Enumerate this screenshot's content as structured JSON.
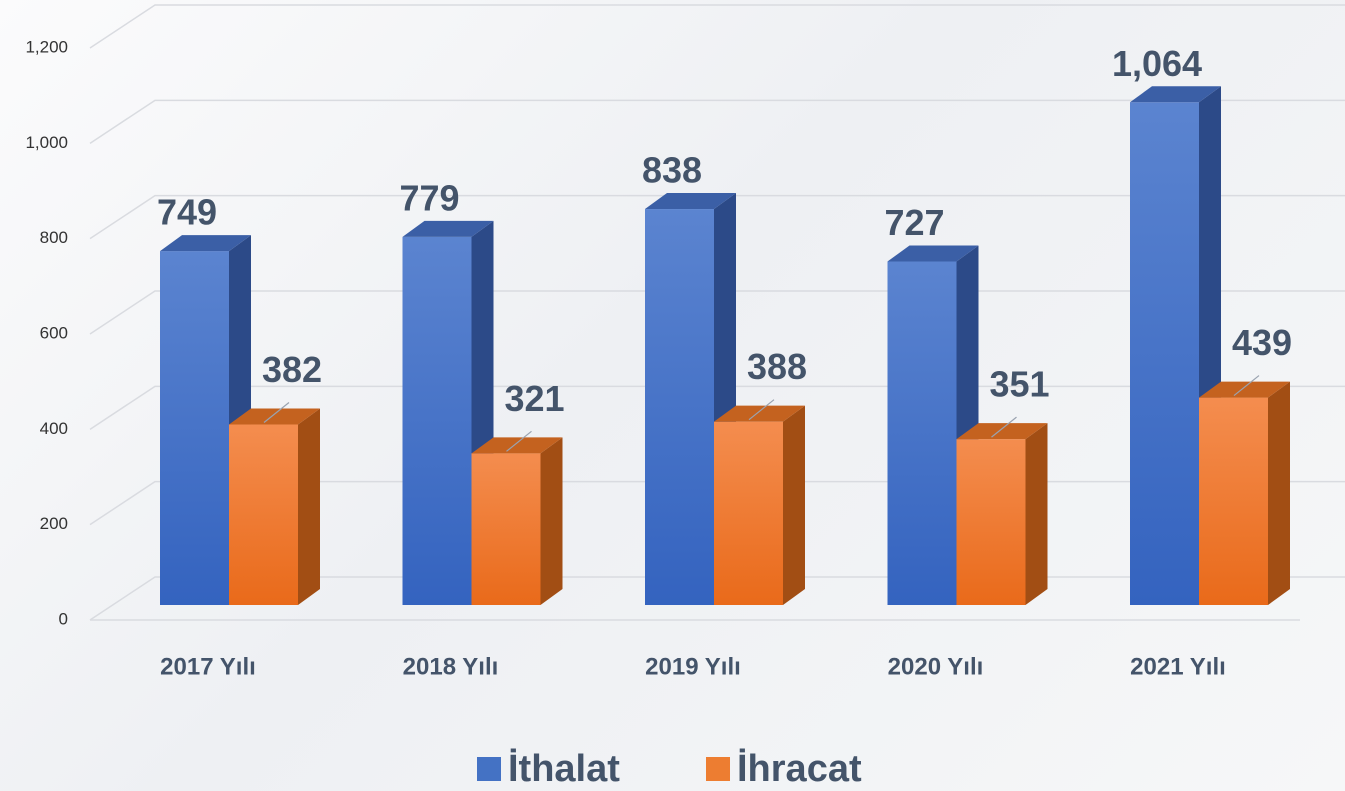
{
  "chart_data": {
    "type": "bar3d",
    "categories": [
      "2017 Yılı",
      "2018 Yılı",
      "2019 Yılı",
      "2020 Yılı",
      "2021 Yılı"
    ],
    "series": [
      {
        "name": "İthalat",
        "color": "#4472c4",
        "values": [
          749,
          779,
          838,
          727,
          1064
        ],
        "value_labels": [
          "749",
          "779",
          "838",
          "727",
          "1,064"
        ]
      },
      {
        "name": "İhracat",
        "color": "#ed7d31",
        "values": [
          382,
          321,
          388,
          351,
          439
        ]
      }
    ],
    "ylim": [
      0,
      1200
    ],
    "yticks": [
      0,
      200,
      400,
      600,
      800,
      {
        "value": 1000,
        "label": "1,000"
      },
      {
        "value": 1200,
        "label": "1,200"
      }
    ],
    "grid": true,
    "legend": "bottom"
  }
}
